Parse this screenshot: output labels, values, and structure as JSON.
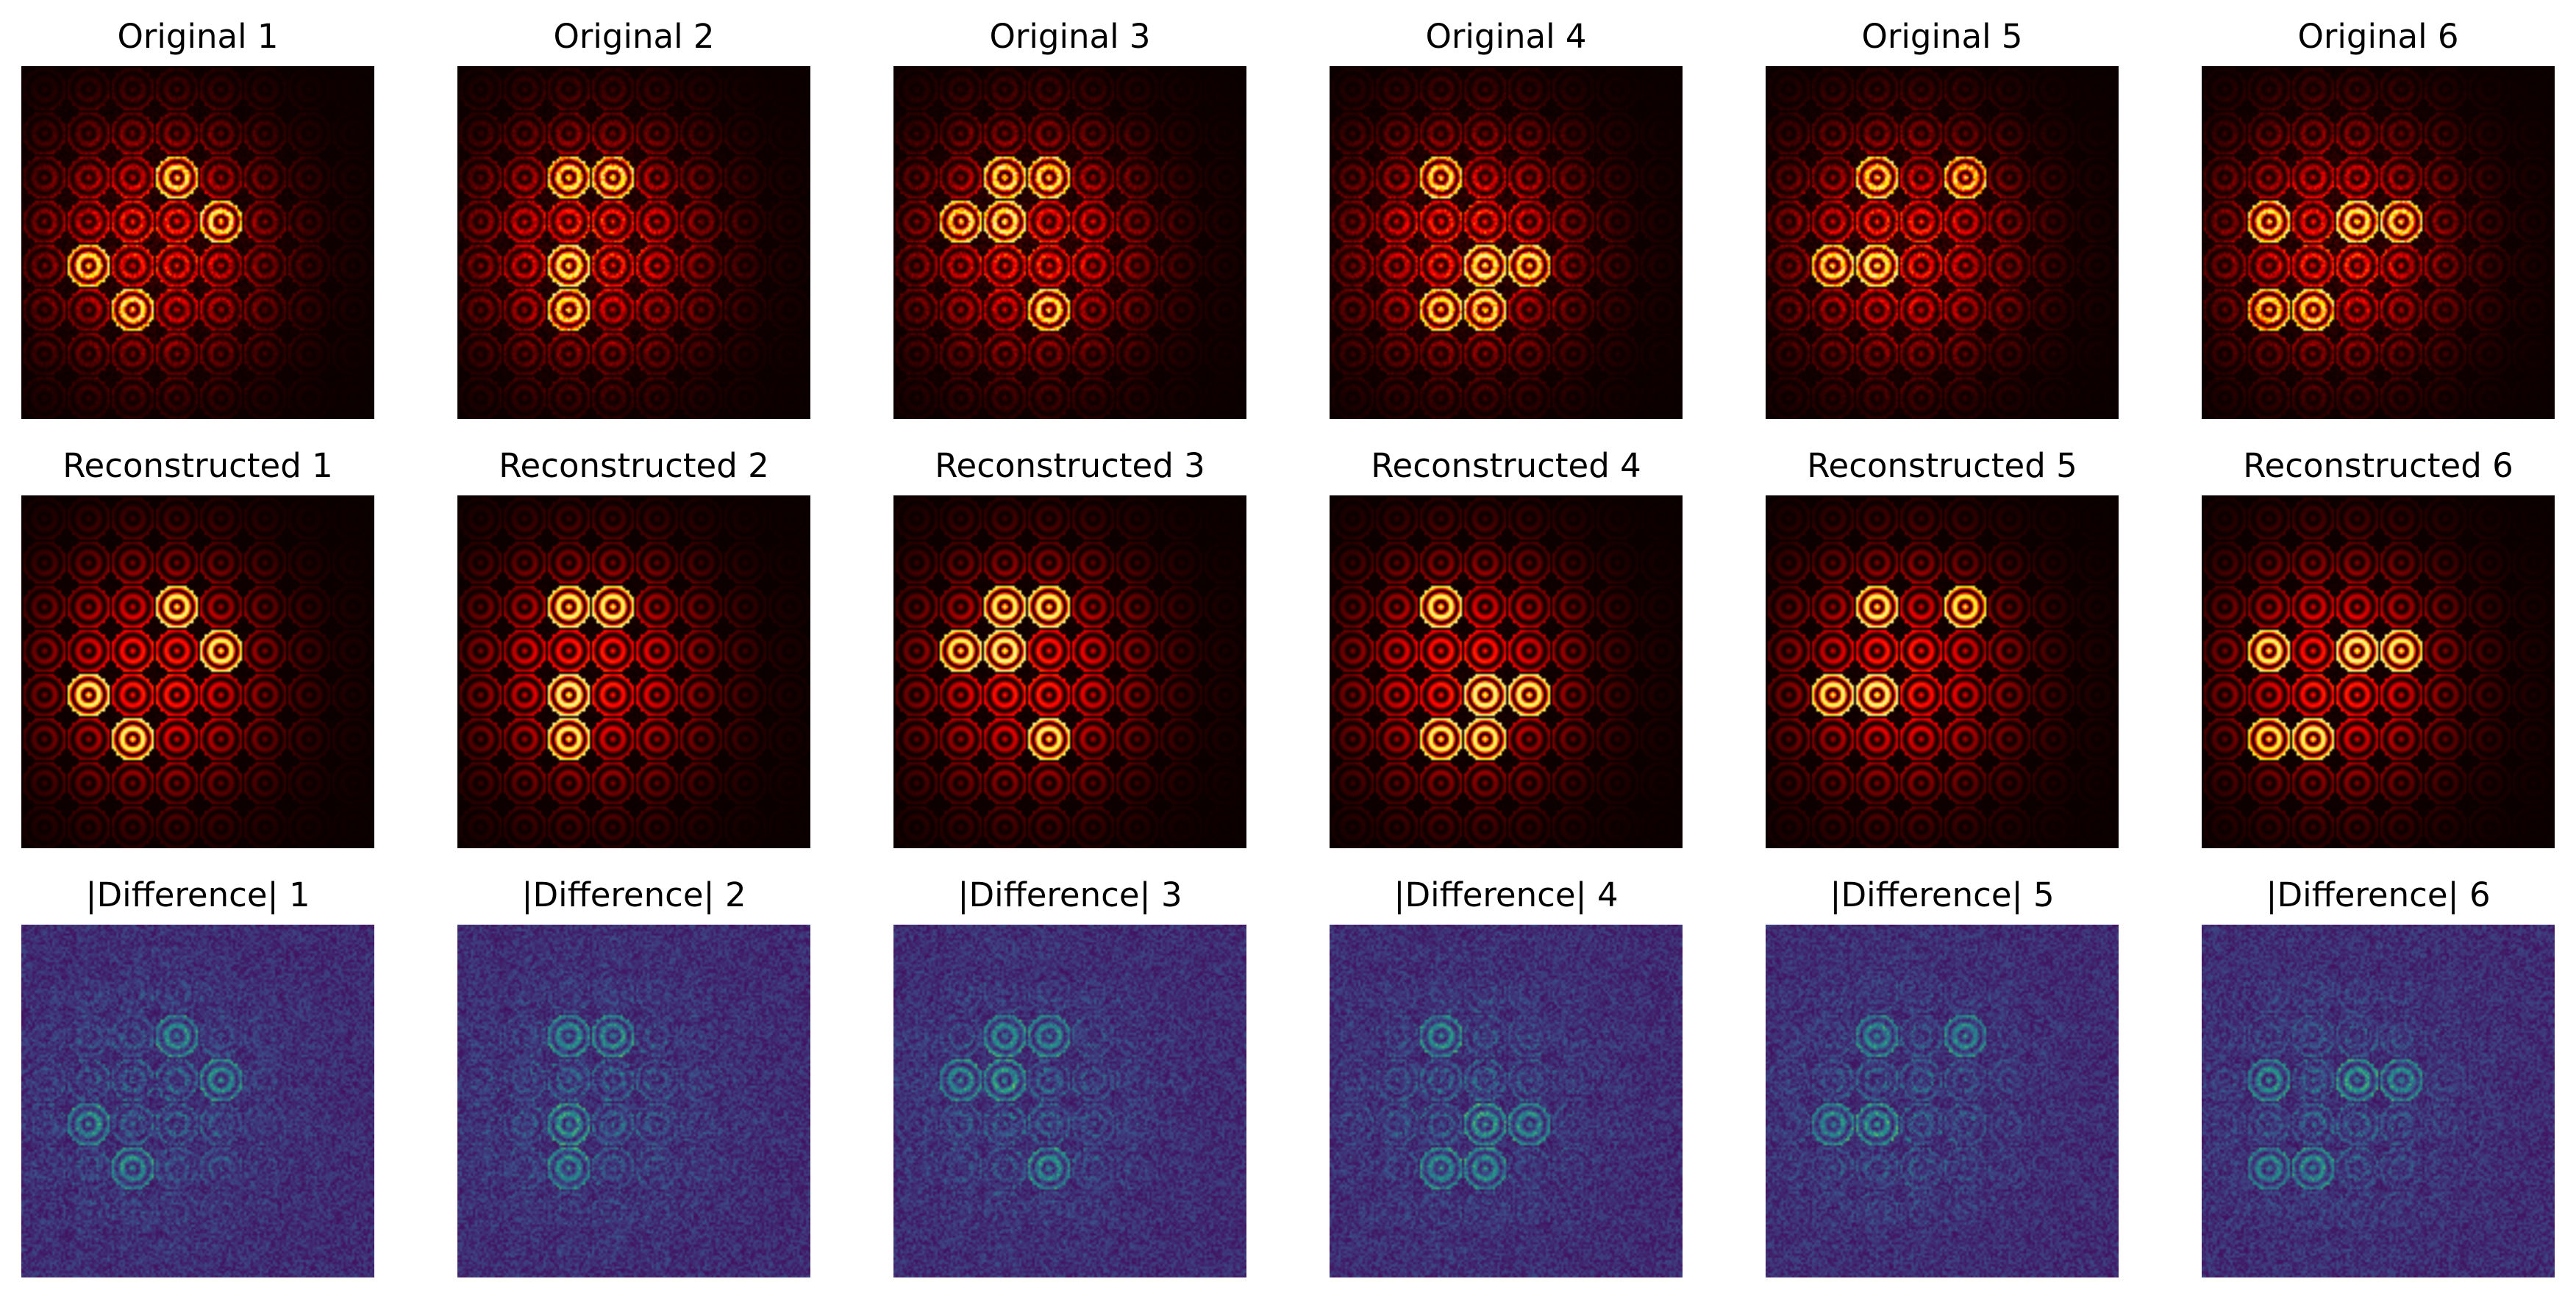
{
  "figure": {
    "rows": [
      {
        "kind": "original",
        "colormap": "hot",
        "titles": [
          "Original 1",
          "Original 2",
          "Original 3",
          "Original 4",
          "Original 5",
          "Original 6"
        ]
      },
      {
        "kind": "reconstructed",
        "colormap": "hot",
        "titles": [
          "Reconstructed 1",
          "Reconstructed 2",
          "Reconstructed 3",
          "Reconstructed 4",
          "Reconstructed 5",
          "Reconstructed 6"
        ]
      },
      {
        "kind": "difference",
        "colormap": "viridis",
        "titles": [
          "|Difference| 1",
          "|Difference| 2",
          "|Difference| 3",
          "|Difference| 4",
          "|Difference| 5",
          "|Difference| 6"
        ]
      }
    ],
    "colors": {
      "hot_background": "#0b0000",
      "viridis_background": "#440b57",
      "hot_peak": "#fff08a",
      "viridis_peak": "#3fa8a0"
    }
  }
}
